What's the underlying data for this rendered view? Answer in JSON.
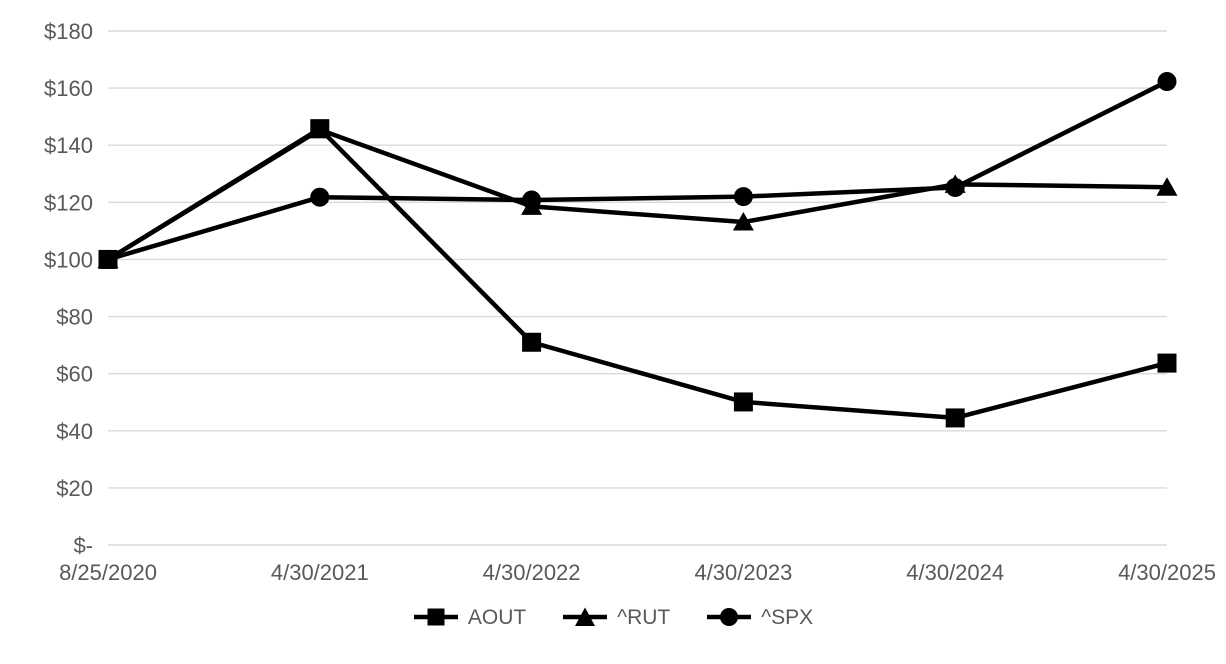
{
  "chart_data": {
    "type": "line",
    "title": "",
    "x": [
      "8/25/2020",
      "4/30/2021",
      "4/30/2022",
      "4/30/2023",
      "4/30/2024",
      "4/30/2025"
    ],
    "series": [
      {
        "name": "AOUT",
        "marker": "square",
        "values": [
          100,
          145.8,
          71.0,
          50.1,
          44.5,
          63.7
        ]
      },
      {
        "name": "^RUT",
        "marker": "triangle",
        "values": [
          100,
          145.4,
          118.6,
          113.1,
          126.3,
          125.3
        ]
      },
      {
        "name": "^SPX",
        "marker": "circle",
        "values": [
          100,
          121.8,
          120.8,
          122.0,
          125.2,
          162.3
        ]
      }
    ],
    "ylim": [
      0,
      180
    ],
    "ytick_step": 20,
    "ytick_labels": [
      "$-",
      "$20",
      "$40",
      "$60",
      "$80",
      "$100",
      "$120",
      "$140",
      "$160",
      "$180"
    ],
    "grid": true,
    "legend_position": "bottom",
    "colors": {
      "line": "#000000",
      "marker": "#000000",
      "text": "#595959",
      "gridline": "#d9d9d9",
      "background": "#ffffff"
    }
  },
  "legend": {
    "items": [
      {
        "label": "AOUT"
      },
      {
        "label": "^RUT"
      },
      {
        "label": "^SPX"
      }
    ]
  }
}
